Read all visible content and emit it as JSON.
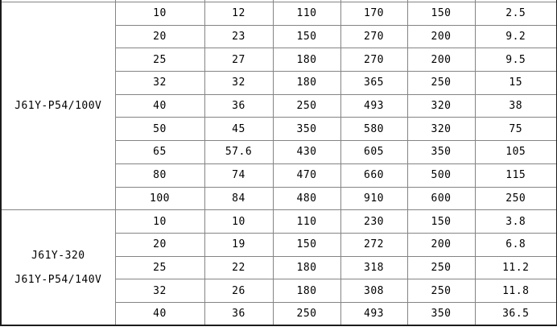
{
  "page": {
    "background_color": "#ffffff",
    "grid_line_color": "#848484",
    "outer_border_color": "#1c1c1c",
    "text_color": "#000000"
  },
  "table": {
    "column_count": 7,
    "groups": [
      {
        "model_lines": [
          "J61Y-P54/100V"
        ],
        "rows": [
          [
            "10",
            "12",
            "110",
            "170",
            "150",
            "2.5"
          ],
          [
            "20",
            "23",
            "150",
            "270",
            "200",
            "9.2"
          ],
          [
            "25",
            "27",
            "180",
            "270",
            "200",
            "9.5"
          ],
          [
            "32",
            "32",
            "180",
            "365",
            "250",
            "15"
          ],
          [
            "40",
            "36",
            "250",
            "493",
            "320",
            "38"
          ],
          [
            "50",
            "45",
            "350",
            "580",
            "320",
            "75"
          ],
          [
            "65",
            "57.6",
            "430",
            "605",
            "350",
            "105"
          ],
          [
            "80",
            "74",
            "470",
            "660",
            "500",
            "115"
          ],
          [
            "100",
            "84",
            "480",
            "910",
            "600",
            "250"
          ]
        ]
      },
      {
        "model_lines": [
          "J61Y-320",
          "J61Y-P54/140V"
        ],
        "rows": [
          [
            "10",
            "10",
            "110",
            "230",
            "150",
            "3.8"
          ],
          [
            "20",
            "19",
            "150",
            "272",
            "200",
            "6.8"
          ],
          [
            "25",
            "22",
            "180",
            "318",
            "250",
            "11.2"
          ],
          [
            "32",
            "26",
            "180",
            "308",
            "250",
            "11.8"
          ],
          [
            "40",
            "36",
            "250",
            "493",
            "350",
            "36.5"
          ]
        ]
      }
    ]
  }
}
